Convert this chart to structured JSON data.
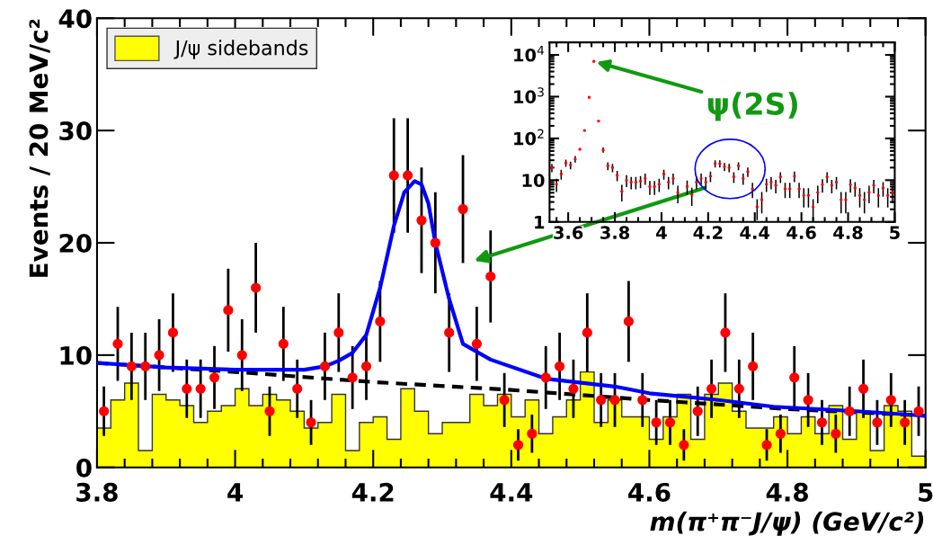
{
  "chart_data": [
    {
      "type": "scatter",
      "ylabel": "Events / 20 MeV/c²",
      "xlabel": "m(π⁺π⁻J/ψ) (GeV/c²)",
      "xlim": [
        3.8,
        5.0
      ],
      "xticks": [
        3.8,
        4,
        4.2,
        4.4,
        4.6,
        4.8,
        5
      ],
      "ylim": [
        0,
        40
      ],
      "yticks": [
        0,
        10,
        20,
        30,
        40
      ],
      "legend": "top left",
      "series": [
        {
          "type": "histogram",
          "name": "J/ψ sidebands",
          "color": "#ffff00",
          "bins": [
            3.8,
            3.82,
            3.84,
            3.86,
            3.88,
            3.9,
            3.92,
            3.94,
            3.96,
            3.98,
            4.0,
            4.02,
            4.04,
            4.06,
            4.08,
            4.1,
            4.12,
            4.14,
            4.16,
            4.18,
            4.2,
            4.22,
            4.24,
            4.26,
            4.28,
            4.3,
            4.32,
            4.34,
            4.36,
            4.38,
            4.4,
            4.42,
            4.44,
            4.46,
            4.48,
            4.5,
            4.52,
            4.54,
            4.56,
            4.58,
            4.6,
            4.62,
            4.64,
            4.66,
            4.68,
            4.7,
            4.72,
            4.74,
            4.76,
            4.78,
            4.8,
            4.82,
            4.84,
            4.86,
            4.88,
            4.9,
            4.92,
            4.94,
            4.96,
            4.98,
            5.0
          ],
          "values": [
            3.5,
            6,
            7.5,
            1.5,
            6.5,
            6,
            5.5,
            4,
            5,
            5.5,
            7,
            5.5,
            6.5,
            6,
            5,
            3.5,
            4,
            6.5,
            1.5,
            4,
            4.5,
            2.5,
            7,
            5,
            3,
            4,
            4,
            6.5,
            5.5,
            6.5,
            4.5,
            6,
            3,
            4.5,
            6,
            8.5,
            4,
            6,
            4.5,
            4.5,
            2.5,
            4.5,
            6.5,
            2.5,
            6.5,
            7.5,
            5,
            3.5,
            3.5,
            4.5,
            3,
            4.5,
            3,
            5.5,
            2.5,
            5,
            1.5,
            5.5,
            5,
            1
          ]
        },
        {
          "type": "line",
          "color": "#000000",
          "line_style": "dashed",
          "x": [
            3.8,
            4.0,
            4.2,
            4.4,
            4.6,
            4.8,
            5.0
          ],
          "values": [
            9.3,
            8.5,
            7.6,
            6.9,
            6.0,
            5.2,
            4.6
          ]
        },
        {
          "type": "line",
          "color": "#0000ff",
          "line_style": "solid",
          "x": [
            3.8,
            3.9,
            4.0,
            4.05,
            4.1,
            4.13,
            4.15,
            4.17,
            4.19,
            4.21,
            4.23,
            4.245,
            4.26,
            4.27,
            4.28,
            4.29,
            4.31,
            4.33,
            4.37,
            4.45,
            4.55,
            4.6,
            4.7,
            4.78,
            4.9,
            5.0
          ],
          "values": [
            9.3,
            8.9,
            8.7,
            8.7,
            8.7,
            9.0,
            9.5,
            10.2,
            11.8,
            16,
            21.5,
            24.5,
            25.5,
            25.2,
            23.5,
            20,
            15,
            11,
            9.6,
            7.9,
            7.2,
            6.6,
            6.0,
            5.4,
            5.0,
            4.6
          ]
        },
        {
          "color": "#ff0000",
          "marker": "circle",
          "x": [
            3.81,
            3.83,
            3.85,
            3.87,
            3.89,
            3.91,
            3.93,
            3.95,
            3.97,
            3.99,
            4.01,
            4.03,
            4.05,
            4.07,
            4.09,
            4.11,
            4.13,
            4.15,
            4.17,
            4.19,
            4.21,
            4.23,
            4.25,
            4.27,
            4.29,
            4.31,
            4.33,
            4.35,
            4.37,
            4.39,
            4.41,
            4.43,
            4.45,
            4.47,
            4.49,
            4.51,
            4.53,
            4.55,
            4.57,
            4.59,
            4.61,
            4.63,
            4.65,
            4.67,
            4.69,
            4.71,
            4.73,
            4.75,
            4.77,
            4.79,
            4.81,
            4.83,
            4.85,
            4.87,
            4.89,
            4.91,
            4.93,
            4.95,
            4.97,
            4.99
          ],
          "values": [
            5,
            11,
            9,
            9,
            10,
            12,
            7,
            7,
            8,
            14,
            10,
            16,
            5,
            11,
            7,
            4,
            9,
            12,
            8,
            9,
            13,
            26,
            26,
            22,
            20,
            12,
            23,
            11,
            17,
            6,
            2,
            3,
            8,
            9,
            7,
            12,
            6,
            6,
            13,
            6,
            4,
            4,
            2,
            5,
            7,
            12,
            7,
            9,
            2,
            3,
            8,
            6,
            4,
            3,
            5,
            7,
            4,
            6,
            4,
            5
          ],
          "errors": [
            2.2,
            3.3,
            3,
            3,
            3.2,
            3.5,
            2.6,
            2.6,
            2.8,
            3.7,
            3.2,
            4,
            2.2,
            3.3,
            2.6,
            2,
            3,
            3.5,
            2.8,
            3,
            3.6,
            5.1,
            5.1,
            4.7,
            4.5,
            3.5,
            4.8,
            3.3,
            4.1,
            2.4,
            1.4,
            1.7,
            2.8,
            3,
            2.6,
            3.5,
            2.4,
            2.4,
            3.6,
            2.4,
            2,
            2,
            1.4,
            2.2,
            2.6,
            3.5,
            2.6,
            3,
            1.4,
            1.7,
            2.8,
            2.4,
            2,
            1.7,
            2.2,
            2.6,
            2,
            2.4,
            2,
            2.2
          ]
        }
      ]
    },
    {
      "type": "scatter",
      "log": "y",
      "xlim": [
        3.52,
        5.0
      ],
      "xticks": [
        3.6,
        3.8,
        4,
        4.2,
        4.4,
        4.6,
        4.8,
        5
      ],
      "ylim": [
        1,
        20000
      ],
      "yticks": [
        1,
        10,
        {
          "value": 100,
          "label": "10$^{2}$"
        },
        {
          "value": 1000,
          "label": "10$^{3}$"
        },
        {
          "value": 10000,
          "label": "10$^{4}$"
        }
      ],
      "annotations": [
        {
          "text": "ψ(2S)",
          "x": 3.71,
          "y": 7000
        }
      ],
      "series": [
        {
          "color": "#ff0000",
          "marker": "circle",
          "x": [
            3.53,
            3.55,
            3.57,
            3.59,
            3.61,
            3.63,
            3.65,
            3.67,
            3.69,
            3.71,
            3.73,
            3.75,
            3.77,
            3.79,
            3.81,
            3.83,
            3.85,
            3.87,
            3.89,
            3.91,
            3.93,
            3.95,
            3.97,
            3.99,
            4.01,
            4.03,
            4.05,
            4.07,
            4.09,
            4.11,
            4.13,
            4.15,
            4.17,
            4.19,
            4.21,
            4.23,
            4.25,
            4.27,
            4.29,
            4.31,
            4.33,
            4.35,
            4.37,
            4.39,
            4.41,
            4.43,
            4.45,
            4.47,
            4.49,
            4.51,
            4.53,
            4.55,
            4.57,
            4.59,
            4.61,
            4.63,
            4.65,
            4.67,
            4.69,
            4.71,
            4.73,
            4.75,
            4.77,
            4.79,
            4.81,
            4.83,
            4.85,
            4.87,
            4.89,
            4.91,
            4.93,
            4.95,
            4.97,
            4.99
          ],
          "values": [
            20,
            8,
            14,
            26,
            23,
            32,
            55,
            155,
            960,
            7000,
            260,
            53,
            22,
            20,
            13,
            5.4,
            10,
            9,
            9,
            9.5,
            11,
            7,
            7,
            8,
            14,
            9,
            11,
            5.1,
            null,
            7.1,
            4.5,
            9,
            11,
            9,
            12.5,
            25,
            25,
            21,
            20,
            12,
            22,
            11,
            16,
            6.2,
            2.3,
            3.4,
            8,
            9,
            7.5,
            12,
            6.2,
            6.2,
            12.5,
            6.2,
            4.3,
            4.3,
            2.3,
            5.1,
            7.8,
            12,
            7.5,
            9,
            3.4,
            3.4,
            7.8,
            6.5,
            4.3,
            3.4,
            5.1,
            7.5,
            4.3,
            6.5,
            4.3,
            5.1
          ],
          "errors": [
            4.5,
            2.8,
            3.7,
            5.1,
            4.8,
            5.7,
            null,
            null,
            null,
            null,
            null,
            7.3,
            4.7,
            4.5,
            3.6,
            2.3,
            3.2,
            3,
            3,
            3.1,
            3.3,
            2.6,
            2.6,
            2.8,
            3.7,
            3,
            3.3,
            2.3,
            null,
            2.7,
            2.1,
            3,
            3.3,
            3,
            3.5,
            5,
            5,
            4.6,
            4.5,
            3.5,
            4.7,
            3.3,
            4,
            2.5,
            1.2,
            1.8,
            2.8,
            3,
            2.7,
            3.5,
            2.5,
            2.5,
            3.5,
            2.5,
            2.1,
            2.1,
            1.2,
            2.3,
            2.8,
            3.5,
            2.7,
            3,
            1.8,
            1.8,
            2.8,
            2.5,
            2.1,
            1.8,
            2.3,
            2.7,
            2.1,
            2.5,
            2.1,
            2.3
          ]
        }
      ]
    }
  ]
}
